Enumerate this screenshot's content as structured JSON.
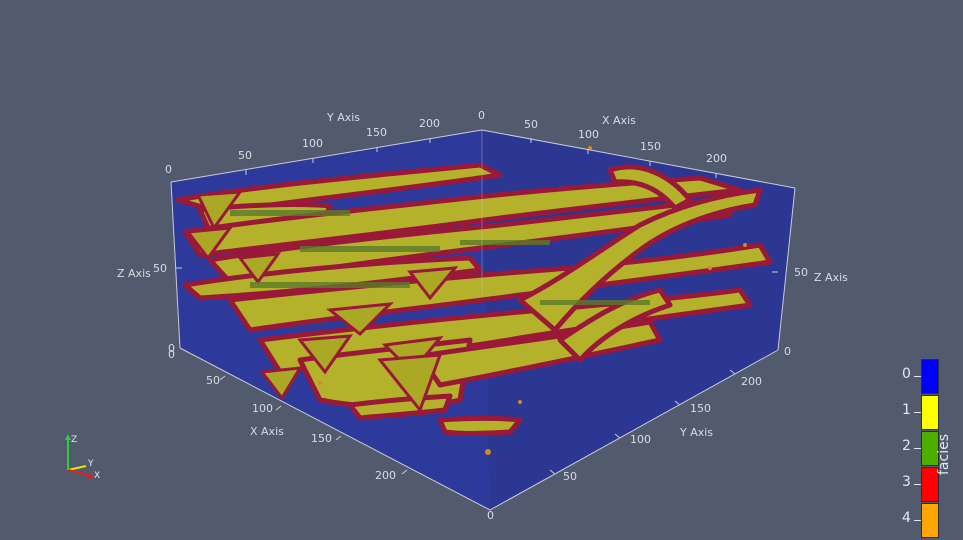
{
  "scene": {
    "background_color": "#525a6e",
    "volume_color": "#2e3a9c",
    "channel_fill_color": "#b4b22a",
    "channel_edge_color": "#9a1838"
  },
  "axes": {
    "y_axis_top": {
      "title": "Y Axis",
      "ticks": [
        "0",
        "50",
        "100",
        "150",
        "200"
      ]
    },
    "x_axis_top": {
      "title": "X Axis",
      "ticks": [
        "0",
        "50",
        "100",
        "150",
        "200"
      ]
    },
    "z_axis_left": {
      "title": "Z Axis",
      "ticks": [
        "0",
        "50",
        "0"
      ]
    },
    "z_axis_right": {
      "title": "Z Axis",
      "ticks": [
        "50",
        "0"
      ]
    },
    "x_axis_bottom": {
      "title": "X Axis",
      "ticks": [
        "0",
        "50",
        "100",
        "150",
        "200"
      ]
    },
    "y_axis_bottom": {
      "title": "Y Axis",
      "ticks": [
        "0",
        "50",
        "100",
        "150",
        "200"
      ]
    }
  },
  "legend": {
    "title": "facies",
    "entries": [
      {
        "label": "0",
        "color": "#0000ff"
      },
      {
        "label": "1",
        "color": "#ffff00"
      },
      {
        "label": "2",
        "color": "#4caf00"
      },
      {
        "label": "3",
        "color": "#ff0000"
      },
      {
        "label": "4",
        "color": "#ffa500"
      }
    ]
  },
  "orientation": {
    "z": "Z",
    "y": "Y",
    "x": "X"
  }
}
